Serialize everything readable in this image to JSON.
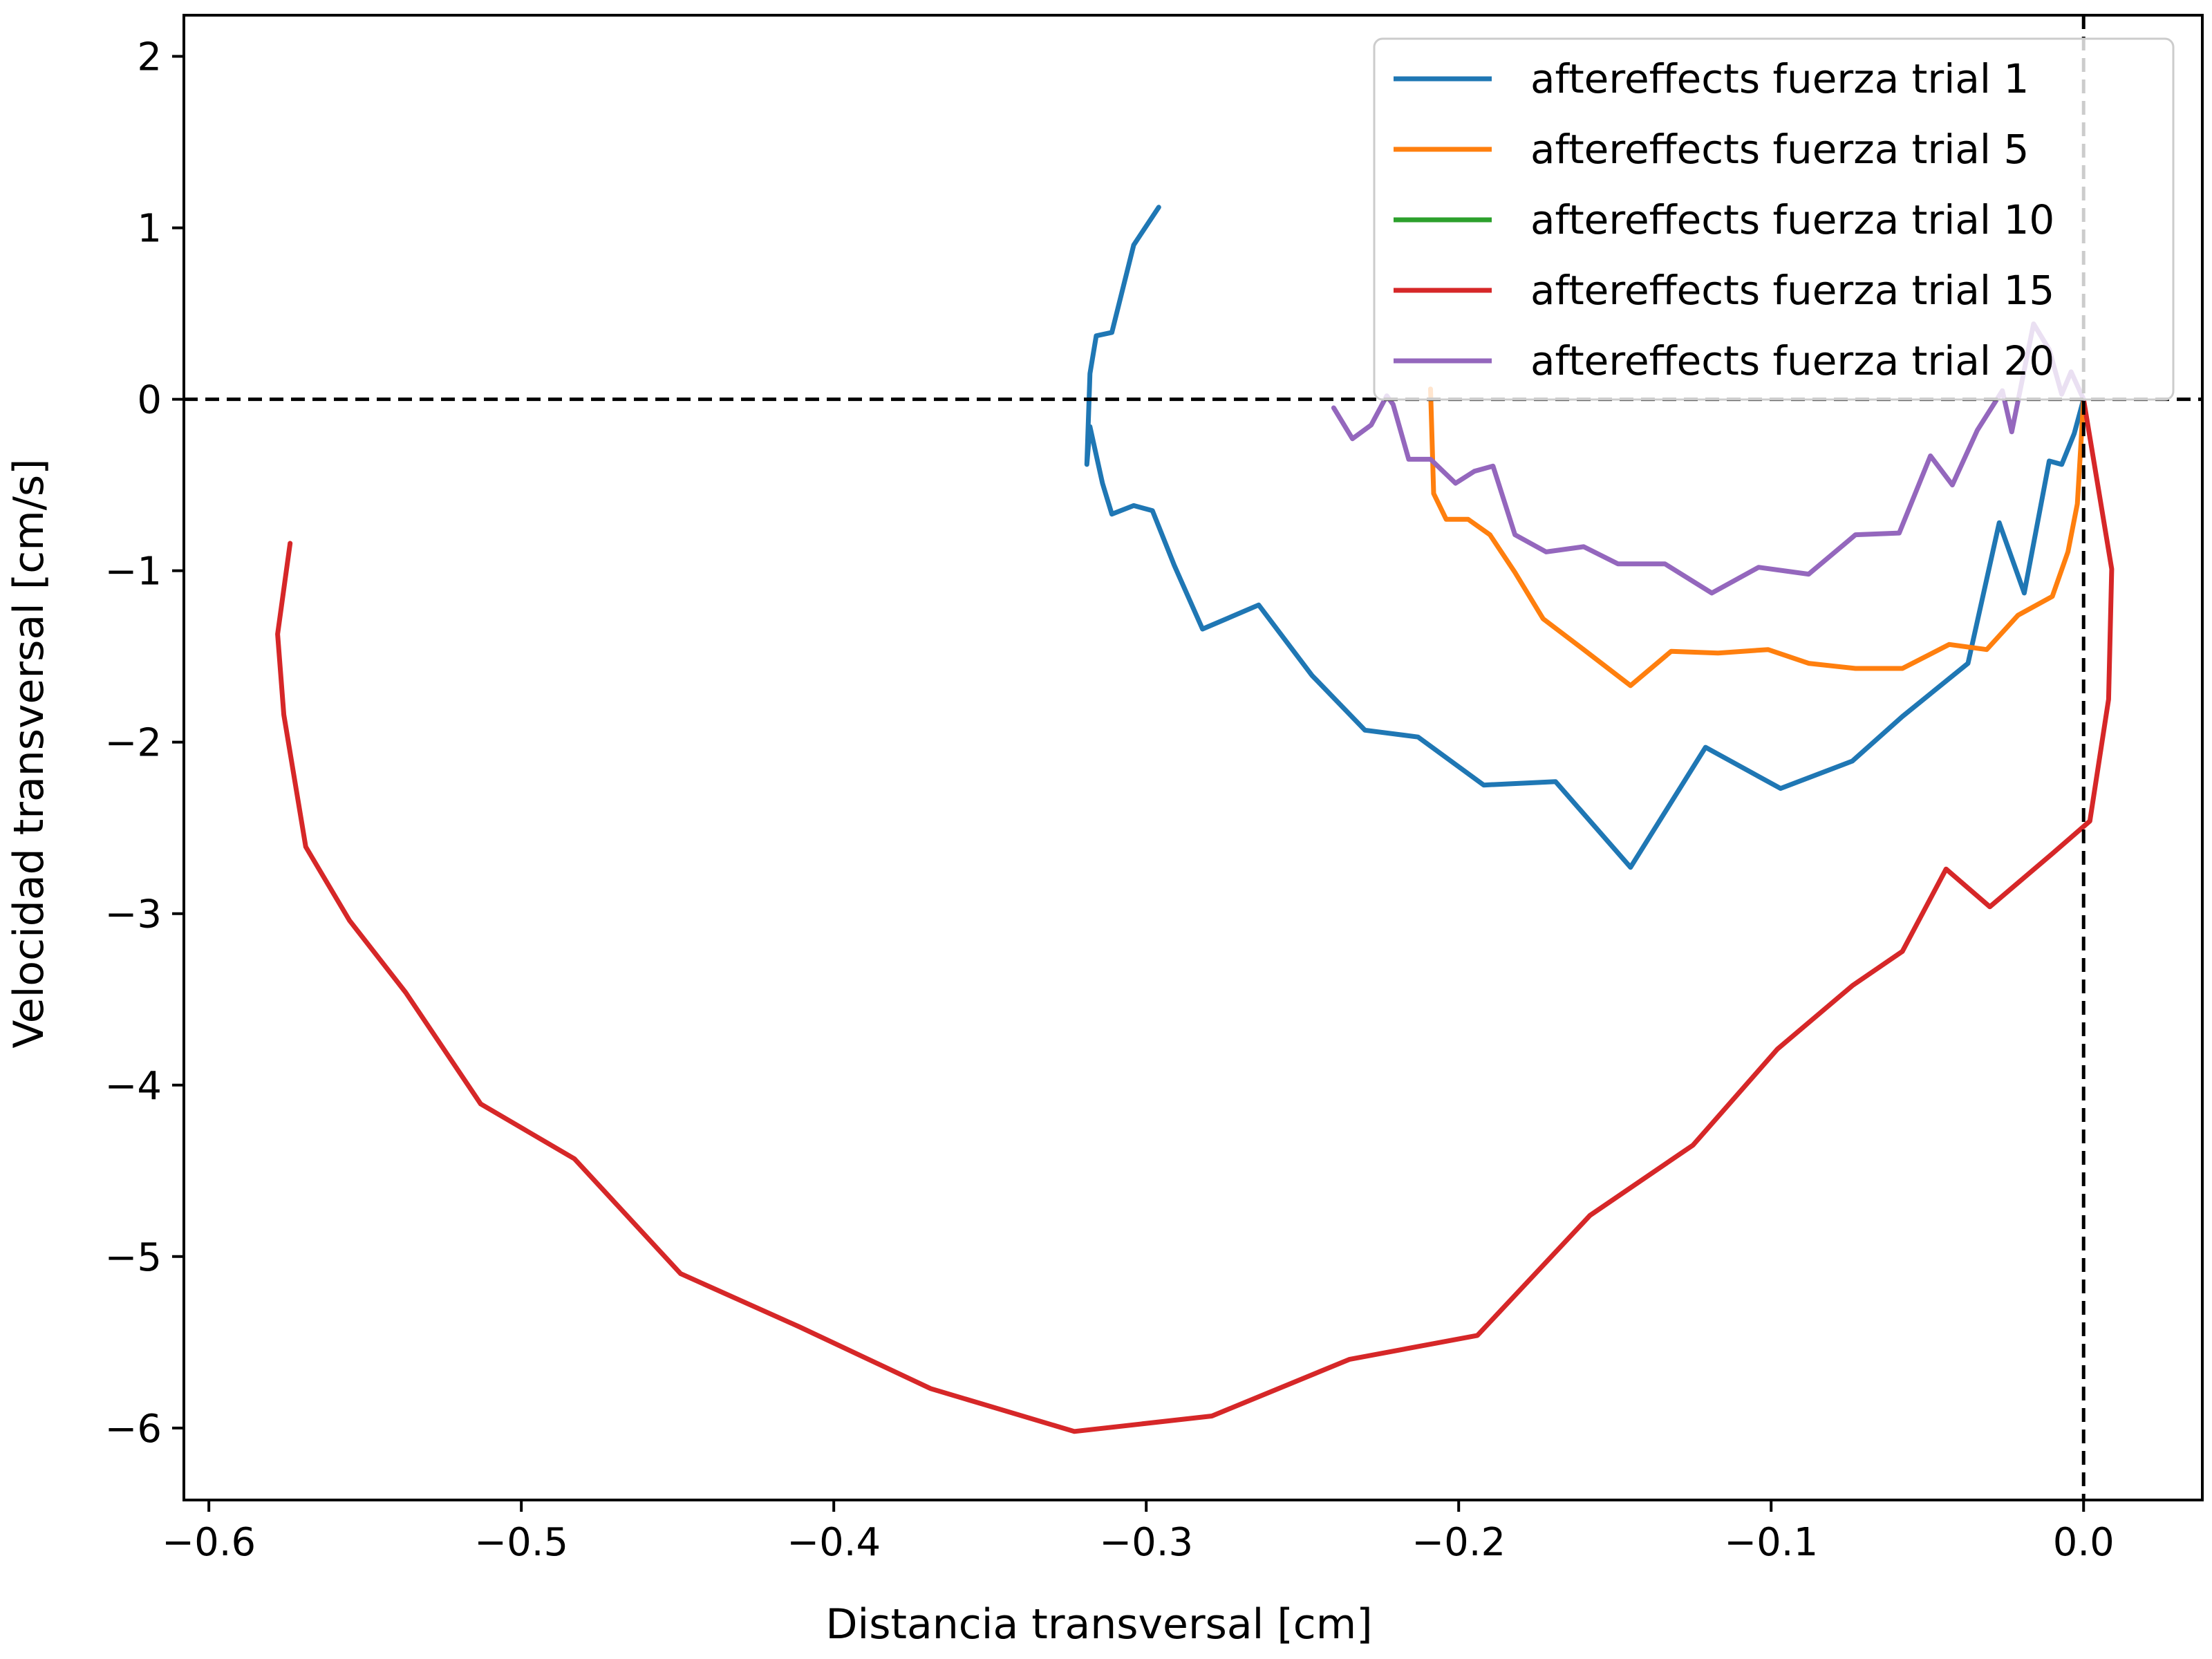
{
  "chart_data": {
    "type": "line",
    "xlabel": "Distancia transversal [cm]",
    "ylabel": "Velocidad transversal [cm/s]",
    "xlim": [
      -0.608,
      0.038
    ],
    "ylim": [
      -6.42,
      2.24
    ],
    "xticks": [
      -0.6,
      -0.5,
      -0.4,
      -0.3,
      -0.2,
      -0.1,
      0.0
    ],
    "xtick_labels": [
      "−0.6",
      "−0.5",
      "−0.4",
      "−0.3",
      "−0.2",
      "−0.1",
      "0.0"
    ],
    "yticks": [
      2,
      1,
      0,
      -1,
      -2,
      -3,
      -4,
      -5,
      -6
    ],
    "ytick_labels": [
      "2",
      "1",
      "0",
      "−1",
      "−2",
      "−3",
      "−4",
      "−5",
      "−6"
    ],
    "reference_lines": {
      "y": 0,
      "x": 0,
      "style": "dashed",
      "color": "#000000"
    },
    "grid": false,
    "legend_position": "top-right",
    "series": [
      {
        "name": "aftereffects fuerza trial 1",
        "color": "#1f77b4",
        "x": [
          -0.296,
          -0.304,
          -0.311,
          -0.316,
          -0.318,
          -0.319,
          -0.318,
          -0.314,
          -0.311,
          -0.304,
          -0.298,
          -0.291,
          -0.282,
          -0.264,
          -0.247,
          -0.23,
          -0.213,
          -0.192,
          -0.169,
          -0.145,
          -0.121,
          -0.097,
          -0.074,
          -0.058,
          -0.037,
          -0.027,
          -0.019,
          -0.011,
          -0.007,
          -0.003,
          0.0
        ],
        "y": [
          1.12,
          0.9,
          0.39,
          0.37,
          0.15,
          -0.38,
          -0.16,
          -0.49,
          -0.67,
          -0.62,
          -0.65,
          -0.97,
          -1.34,
          -1.2,
          -1.61,
          -1.93,
          -1.97,
          -2.25,
          -2.23,
          -2.73,
          -2.03,
          -2.27,
          -2.11,
          -1.85,
          -1.54,
          -0.72,
          -1.13,
          -0.36,
          -0.38,
          -0.2,
          0.0
        ]
      },
      {
        "name": "aftereffects fuerza trial 5",
        "color": "#ff7f0e",
        "x": [
          -0.209,
          -0.208,
          -0.204,
          -0.197,
          -0.19,
          -0.182,
          -0.173,
          -0.16,
          -0.145,
          -0.132,
          -0.117,
          -0.101,
          -0.088,
          -0.073,
          -0.058,
          -0.043,
          -0.031,
          -0.021,
          -0.01,
          -0.005,
          -0.002,
          0.0
        ],
        "y": [
          0.06,
          -0.55,
          -0.7,
          -0.7,
          -0.79,
          -1.01,
          -1.28,
          -1.46,
          -1.67,
          -1.47,
          -1.48,
          -1.46,
          -1.54,
          -1.57,
          -1.57,
          -1.43,
          -1.46,
          -1.26,
          -1.15,
          -0.89,
          -0.61,
          0.0
        ]
      },
      {
        "name": "aftereffects fuerza trial 10",
        "color": "#2ca02c",
        "x": [],
        "y": []
      },
      {
        "name": "aftereffects fuerza trial 15",
        "color": "#d62728",
        "x": [
          -0.574,
          -0.578,
          -0.576,
          -0.569,
          -0.555,
          -0.537,
          -0.513,
          -0.483,
          -0.449,
          -0.411,
          -0.369,
          -0.323,
          -0.279,
          -0.235,
          -0.194,
          -0.158,
          -0.125,
          -0.098,
          -0.074,
          -0.058,
          -0.044,
          -0.03,
          -0.01,
          0.002,
          0.008,
          0.009,
          0.0
        ],
        "y": [
          -0.84,
          -1.37,
          -1.84,
          -2.61,
          -3.04,
          -3.46,
          -4.11,
          -4.43,
          -5.1,
          -5.41,
          -5.77,
          -6.02,
          -5.93,
          -5.6,
          -5.46,
          -4.76,
          -4.35,
          -3.79,
          -3.42,
          -3.22,
          -2.74,
          -2.96,
          -2.65,
          -2.46,
          -1.75,
          -0.99,
          0.0
        ]
      },
      {
        "name": "aftereffects fuerza trial 20",
        "color": "#9467bd",
        "x": [
          -0.24,
          -0.234,
          -0.228,
          -0.223,
          -0.221,
          -0.216,
          -0.209,
          -0.201,
          -0.195,
          -0.189,
          -0.182,
          -0.172,
          -0.16,
          -0.149,
          -0.134,
          -0.119,
          -0.104,
          -0.088,
          -0.073,
          -0.059,
          -0.049,
          -0.042,
          -0.034,
          -0.026,
          -0.023,
          -0.016,
          -0.011,
          -0.007,
          -0.004,
          0.0
        ],
        "y": [
          -0.05,
          -0.23,
          -0.15,
          0.02,
          -0.03,
          -0.35,
          -0.35,
          -0.49,
          -0.42,
          -0.39,
          -0.79,
          -0.89,
          -0.86,
          -0.96,
          -0.96,
          -1.13,
          -0.98,
          -1.02,
          -0.79,
          -0.78,
          -0.33,
          -0.5,
          -0.18,
          0.05,
          -0.19,
          0.44,
          0.29,
          0.03,
          0.16,
          0.0
        ]
      }
    ]
  }
}
